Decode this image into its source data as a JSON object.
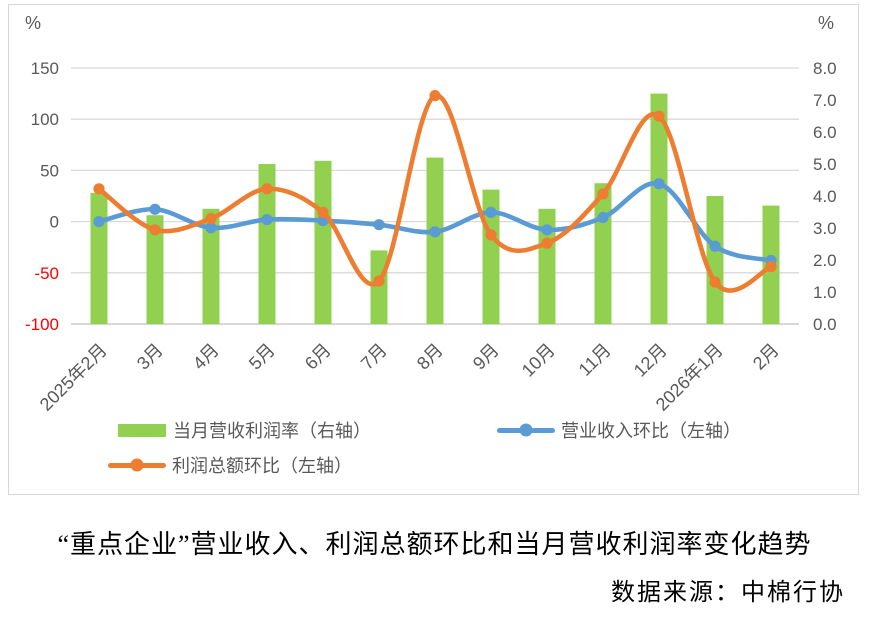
{
  "caption": {
    "title": "“重点企业”营业收入、利润总额环比和当月营收利润率变化趋势",
    "source": "数据来源：中棉行协"
  },
  "chart_data": {
    "type": "combo",
    "title": "",
    "categories": [
      "2025年2月",
      "3月",
      "4月",
      "5月",
      "6月",
      "7月",
      "8月",
      "9月",
      "10月",
      "11月",
      "12月",
      "2026年1月",
      "2月"
    ],
    "series": [
      {
        "name": "当月营收利润率（右轴）",
        "type": "bar",
        "axis": "right",
        "color": "#92D050",
        "values": [
          4.1,
          3.4,
          3.6,
          5.0,
          5.1,
          2.3,
          5.2,
          4.2,
          3.6,
          4.4,
          7.2,
          4.0,
          3.7
        ]
      },
      {
        "name": "营业收入环比（左轴）",
        "type": "line",
        "axis": "left",
        "color": "#5B9BD5",
        "values": [
          0,
          12,
          -6,
          2,
          1,
          -3,
          -10,
          9,
          -8,
          4,
          37,
          -24,
          -38
        ]
      },
      {
        "name": "利润总额环比（左轴）",
        "type": "line",
        "axis": "left",
        "color": "#ED7D31",
        "values": [
          32,
          -8,
          3,
          32,
          9,
          -58,
          123,
          -13,
          -21,
          27,
          103,
          -59,
          -44
        ]
      }
    ],
    "left_axis": {
      "unit_label": "%",
      "ticks": [
        150,
        100,
        50,
        0,
        -50,
        -100
      ],
      "min": -100,
      "max": 150
    },
    "right_axis": {
      "unit_label": "%",
      "tick_labels": [
        "8.0",
        "7.0",
        "6.0",
        "5.0",
        "4.0",
        "3.0",
        "2.0",
        "1.0",
        "0.0"
      ],
      "min": 0,
      "max": 8
    },
    "grid": "horizontal gridlines at left-axis ticks",
    "legend_position": "bottom",
    "colors": {
      "tick_text": "#595959",
      "negative_tick": "#FF0000",
      "gridline": "#D9D9D9",
      "axis_baseline": "#BFBFBF"
    }
  }
}
